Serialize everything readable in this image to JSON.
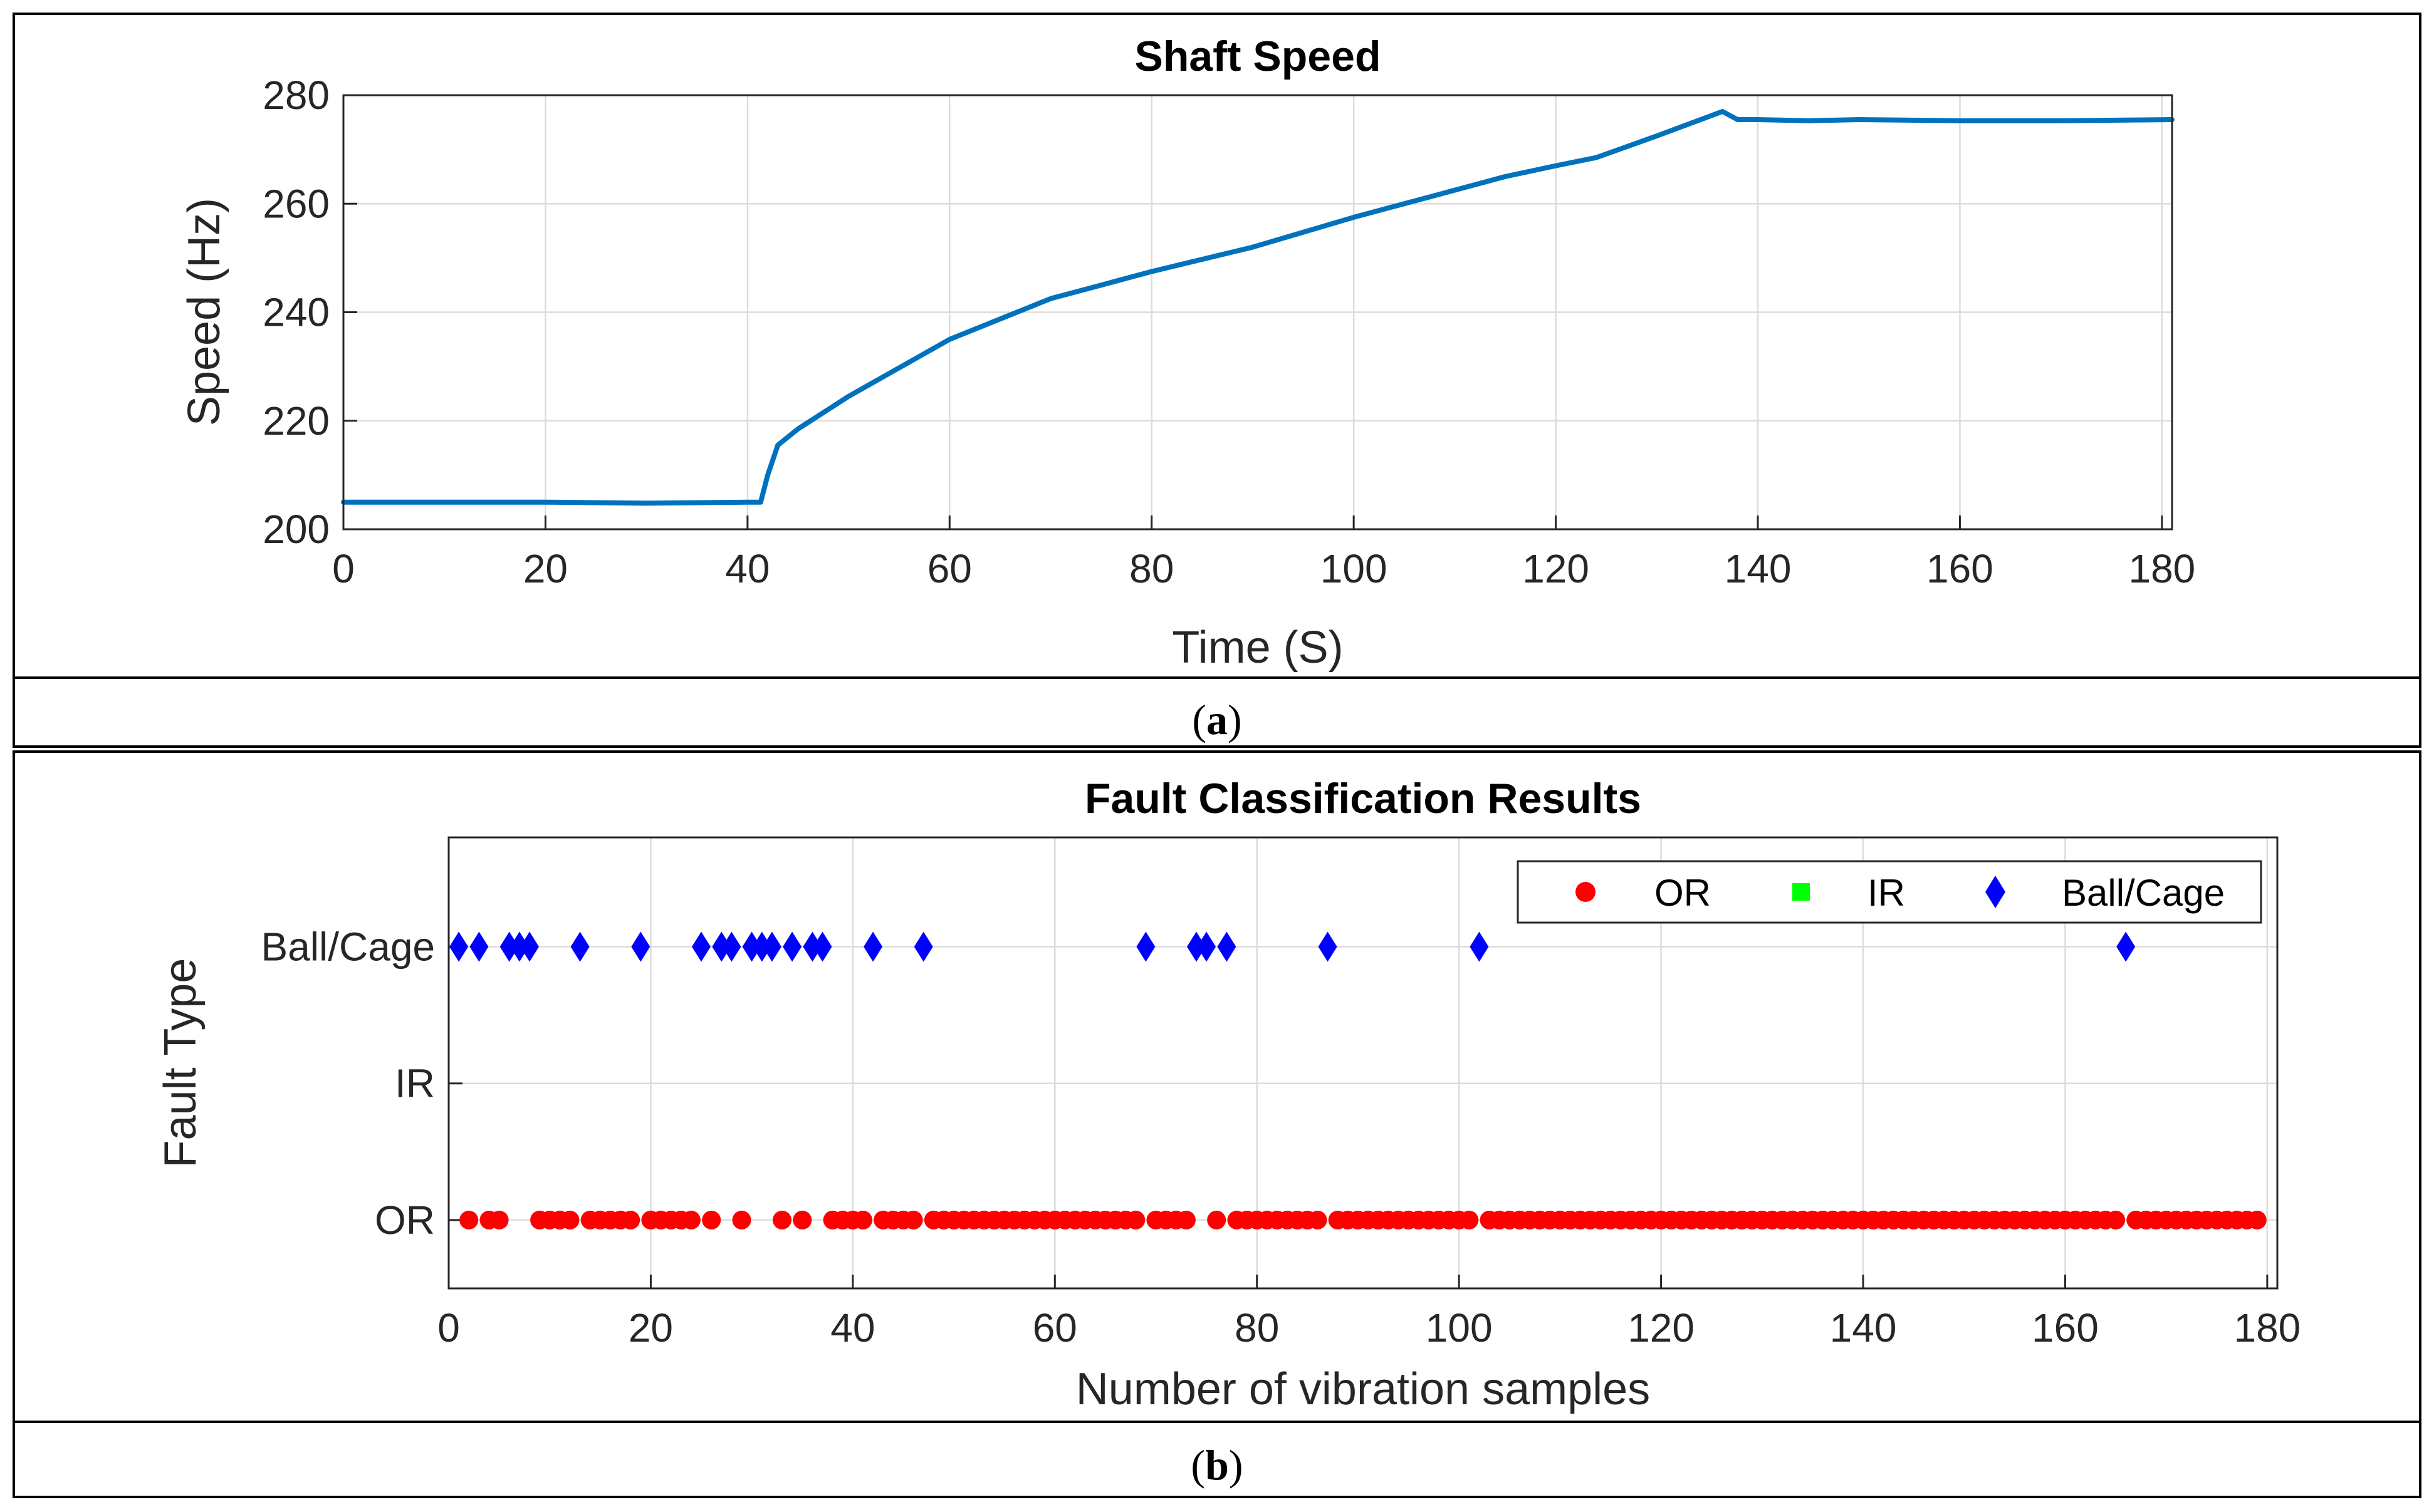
{
  "colors": {
    "speed_line": "#0072BD",
    "or": "#FF0000",
    "ir": "#00FF00",
    "ball_cage": "#0000FF"
  },
  "chart_data": [
    {
      "type": "line",
      "title": "Shaft Speed",
      "xlabel": "Time (S)",
      "ylabel": "Speed (Hz)",
      "xlim": [
        0,
        181
      ],
      "ylim": [
        200,
        280
      ],
      "xticks": [
        0,
        20,
        40,
        60,
        80,
        100,
        120,
        140,
        160,
        180
      ],
      "yticks": [
        200,
        220,
        240,
        260,
        280
      ],
      "grid": true,
      "caption_open": "(",
      "caption_letter": "a",
      "caption_close": ")",
      "series": [
        {
          "name": "Shaft Speed",
          "x": [
            0,
            10,
            20,
            30,
            40,
            41.3,
            42,
            43,
            45,
            50,
            60,
            70,
            75,
            80,
            90,
            100,
            110,
            115,
            120,
            124,
            130,
            136.5,
            138,
            140,
            145,
            150,
            160,
            170,
            181
          ],
          "y": [
            205,
            205,
            205,
            204.8,
            205,
            205,
            210,
            215.5,
            218.5,
            224.5,
            235,
            242.5,
            245,
            247.5,
            252,
            257.5,
            262.5,
            265,
            267,
            268.5,
            272.5,
            277,
            275.5,
            275.5,
            275.3,
            275.5,
            275.3,
            275.3,
            275.5
          ]
        }
      ]
    },
    {
      "type": "scatter",
      "title": "Fault Classification Results",
      "xlabel": "Number of vibration samples",
      "ylabel": "Fault Type",
      "xlim": [
        0,
        181
      ],
      "ylim": [
        0.5,
        3.8
      ],
      "xticks": [
        0,
        20,
        40,
        60,
        80,
        100,
        120,
        140,
        160,
        180
      ],
      "yticks": [
        1,
        2,
        3
      ],
      "ytick_labels": [
        "OR",
        "IR",
        "Ball/Cage"
      ],
      "grid": true,
      "legend_position": "top-right",
      "caption_open": "(",
      "caption_letter": "b",
      "caption_close": ")",
      "series": [
        {
          "name": "OR",
          "level": 1,
          "marker": "circle",
          "x": [
            2,
            4,
            5,
            9,
            10,
            11,
            12,
            14,
            15,
            16,
            17,
            18,
            20,
            21,
            22,
            23,
            24,
            26,
            29,
            33,
            35,
            38,
            39,
            40,
            41,
            43,
            44,
            45,
            46,
            48,
            49,
            50,
            51,
            52,
            53,
            54,
            55,
            56,
            57,
            58,
            59,
            60,
            61,
            62,
            63,
            64,
            65,
            66,
            67,
            68,
            70,
            71,
            72,
            73,
            76,
            78,
            79,
            80,
            81,
            82,
            83,
            84,
            85,
            86,
            88,
            89,
            90,
            91,
            92,
            93,
            94,
            95,
            96,
            97,
            98,
            99,
            100,
            101,
            103,
            104,
            105,
            106,
            107,
            108,
            109,
            110,
            111,
            112,
            113,
            114,
            115,
            116,
            117,
            118,
            119,
            120,
            121,
            122,
            123,
            124,
            125,
            126,
            127,
            128,
            129,
            130,
            131,
            132,
            133,
            134,
            135,
            136,
            137,
            138,
            139,
            140,
            141,
            142,
            143,
            144,
            145,
            146,
            147,
            148,
            149,
            150,
            151,
            152,
            153,
            154,
            155,
            156,
            157,
            158,
            159,
            160,
            161,
            162,
            163,
            164,
            165,
            167,
            168,
            169,
            170,
            171,
            172,
            173,
            174,
            175,
            176,
            177,
            178,
            179
          ]
        },
        {
          "name": "IR",
          "level": 2,
          "marker": "square",
          "x": []
        },
        {
          "name": "Ball/Cage",
          "level": 3,
          "marker": "diamond",
          "x": [
            1,
            3,
            6,
            7,
            8,
            13,
            19,
            25,
            27,
            28,
            30,
            31,
            32,
            34,
            36,
            37,
            42,
            47,
            69,
            74,
            75,
            77,
            87,
            102,
            166
          ]
        }
      ]
    }
  ]
}
